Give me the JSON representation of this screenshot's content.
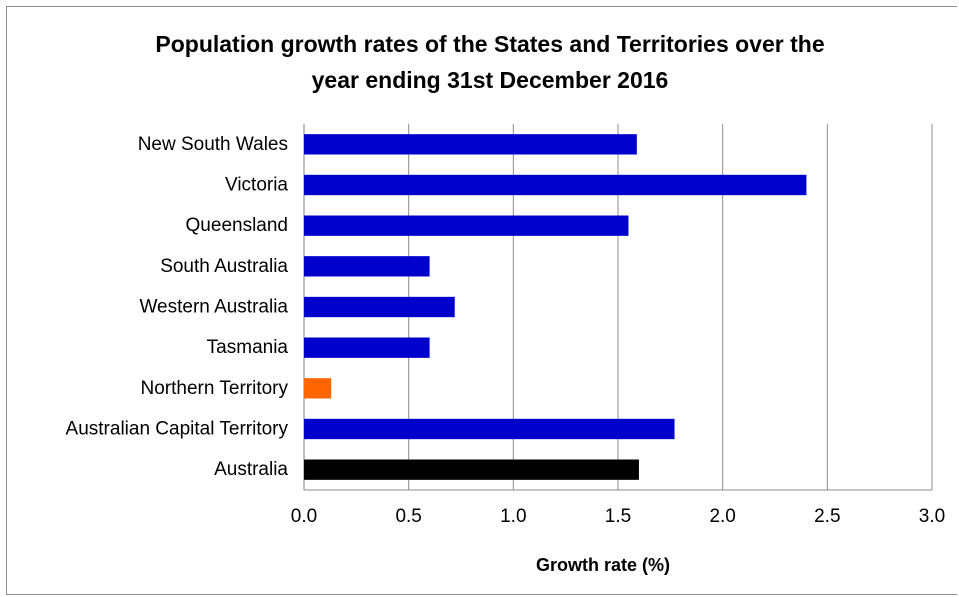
{
  "chart_data": {
    "type": "bar",
    "orientation": "horizontal",
    "title_lines": [
      "Population growth rates of the States and Territories over the",
      "year ending 31st December 2016"
    ],
    "xlabel": "Growth rate (%)",
    "ylabel": "",
    "xlim": [
      0.0,
      3.0
    ],
    "x_ticks": [
      0.0,
      0.5,
      1.0,
      1.5,
      2.0,
      2.5,
      3.0
    ],
    "x_tick_labels": [
      "0.0",
      "0.5",
      "1.0",
      "1.5",
      "2.0",
      "2.5",
      "3.0"
    ],
    "grid": "vertical",
    "legend": "none",
    "categories": [
      "New South Wales",
      "Victoria",
      "Queensland",
      "South Australia",
      "Western Australia",
      "Tasmania",
      "Northern Territory",
      "Australian Capital Territory",
      "Australia"
    ],
    "values": [
      1.59,
      2.4,
      1.55,
      0.6,
      0.72,
      0.6,
      0.13,
      1.77,
      1.6
    ],
    "bar_colors": [
      "#0000cc",
      "#0000cc",
      "#0000cc",
      "#0000cc",
      "#0000cc",
      "#0000cc",
      "#ff6600",
      "#0000cc",
      "#000000"
    ]
  }
}
